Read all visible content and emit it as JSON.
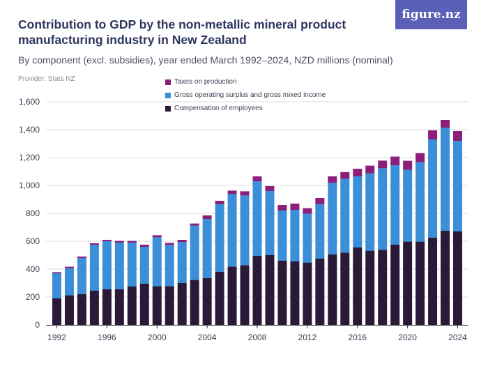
{
  "title": "Contribution to GDP by the non-metallic mineral product manufacturing industry in New Zealand",
  "subtitle": "By component (excl. subsidies), year ended March 1992–2024, NZD millions (nominal)",
  "provider": "Provider: Stats NZ",
  "logo_text": "figure.nz",
  "colors": {
    "taxes": "#8b1f7a",
    "gross_operating": "#3b8fd9",
    "compensation": "#2a1a38",
    "grid": "#dcdcdc",
    "axis": "#333333",
    "logo_bg": "#5a5fb8"
  },
  "chart_data": {
    "type": "bar",
    "stacked": true,
    "x": [
      1992,
      1993,
      1994,
      1995,
      1996,
      1997,
      1998,
      1999,
      2000,
      2001,
      2002,
      2003,
      2004,
      2005,
      2006,
      2007,
      2008,
      2009,
      2010,
      2011,
      2012,
      2013,
      2014,
      2015,
      2016,
      2017,
      2018,
      2019,
      2020,
      2021,
      2022,
      2023,
      2024
    ],
    "series": [
      {
        "name": "Compensation of employees",
        "color_key": "compensation",
        "values": [
          190,
          212,
          220,
          245,
          255,
          255,
          275,
          295,
          278,
          278,
          300,
          322,
          335,
          380,
          418,
          428,
          495,
          500,
          460,
          455,
          447,
          475,
          505,
          518,
          555,
          532,
          538,
          575,
          597,
          597,
          625,
          675,
          670
        ]
      },
      {
        "name": "Gross operating surplus and gross mixed income",
        "color_key": "gross_operating",
        "values": [
          180,
          195,
          260,
          330,
          345,
          335,
          315,
          265,
          350,
          295,
          295,
          390,
          425,
          485,
          520,
          500,
          535,
          460,
          360,
          370,
          350,
          390,
          515,
          530,
          510,
          555,
          585,
          570,
          515,
          570,
          705,
          740,
          650
        ]
      },
      {
        "name": "Taxes on production",
        "color_key": "taxes",
        "values": [
          8,
          10,
          10,
          10,
          10,
          12,
          12,
          15,
          15,
          15,
          15,
          15,
          25,
          25,
          25,
          30,
          35,
          35,
          40,
          45,
          40,
          45,
          45,
          48,
          55,
          55,
          55,
          62,
          65,
          65,
          65,
          55,
          70
        ]
      }
    ],
    "legend_order": [
      "Taxes on production",
      "Gross operating surplus and gross mixed income",
      "Compensation of employees"
    ],
    "legend_placement": "top",
    "ylim": [
      0,
      1600
    ],
    "yticks": [
      0,
      200,
      400,
      600,
      800,
      1000,
      1200,
      1400,
      1600
    ],
    "ytick_labels": [
      "0",
      "200",
      "400",
      "600",
      "800",
      "1,000",
      "1,200",
      "1,400",
      "1,600"
    ],
    "xtick_labels": [
      "1992",
      "1996",
      "2000",
      "2004",
      "2008",
      "2012",
      "2016",
      "2020",
      "2024"
    ],
    "grid": true
  }
}
